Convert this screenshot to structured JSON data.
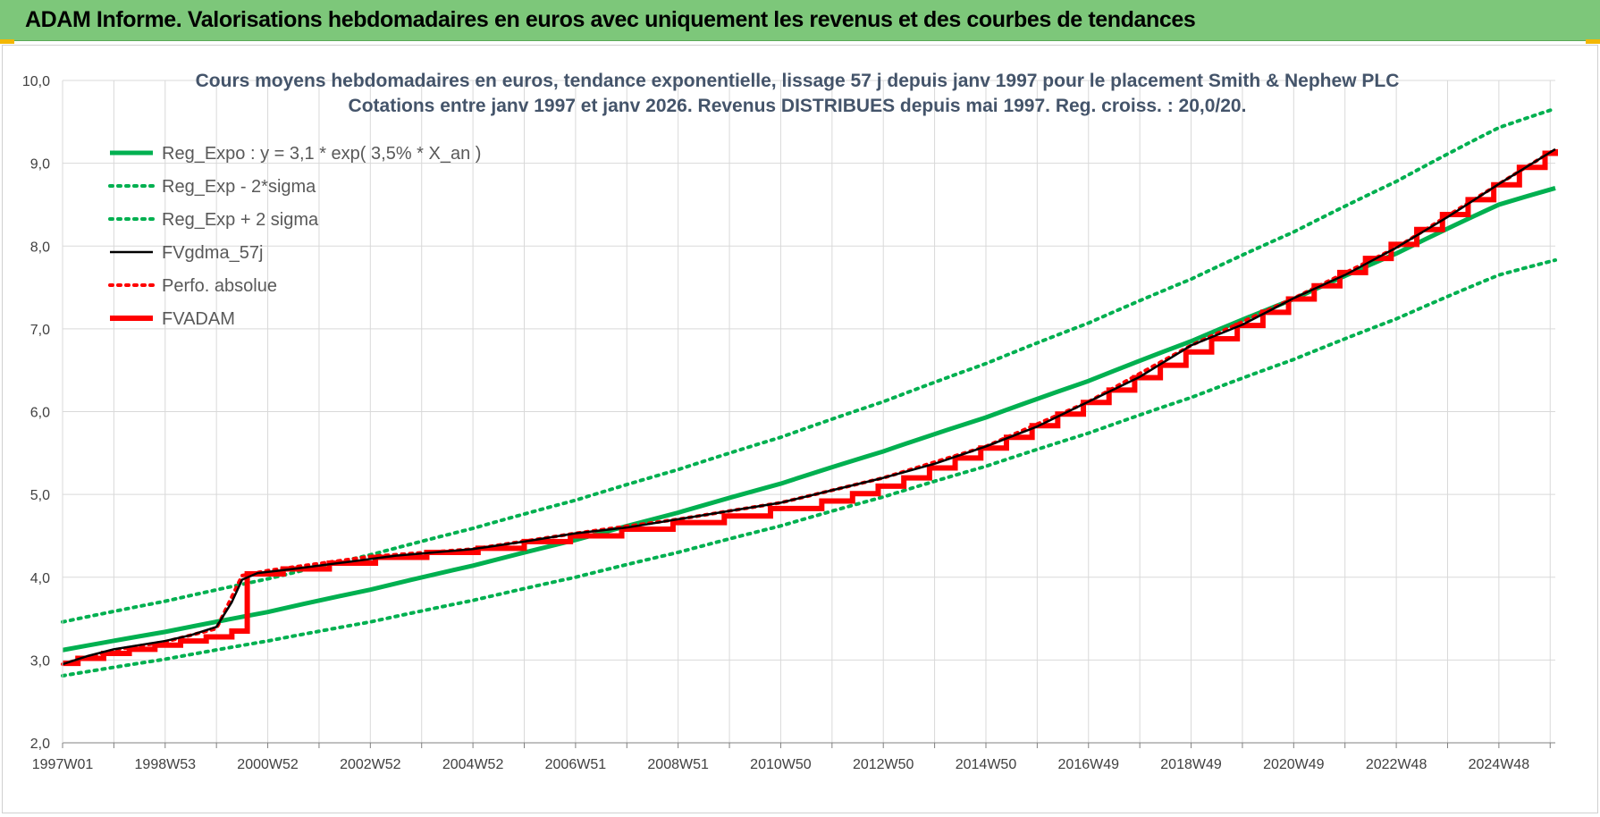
{
  "header": {
    "title": "ADAM Informe. Valorisations hebdomadaires en euros avec uniquement les revenus et des courbes de tendances"
  },
  "colors": {
    "banner": "#7dc77a",
    "trend_green": "#00b050",
    "fvgdma_black": "#000000",
    "red": "#ff0000",
    "grid": "#d9d9d9"
  },
  "chart_data": {
    "type": "line",
    "title": "Cours moyens hebdomadaires en euros, tendance exponentielle, lissage 57 j depuis janv 1997 pour le placement Smith & Nephew PLC",
    "subtitle": "Cotations entre janv 1997 et janv 2026. Revenus DISTRIBUES depuis mai 1997. Reg. croiss. : 20,0/20.",
    "xlabel": "",
    "ylabel": "",
    "x_range": [
      1997.0,
      2026.1
    ],
    "ylim": [
      2.0,
      10.0
    ],
    "y_ticks": [
      "2,0",
      "3,0",
      "4,0",
      "5,0",
      "6,0",
      "7,0",
      "8,0",
      "9,0",
      "10,0"
    ],
    "x_tick_labels": [
      "1997W01",
      "1998W53",
      "2000W52",
      "2002W52",
      "2004W52",
      "2006W51",
      "2008W51",
      "2010W50",
      "2012W50",
      "2014W50",
      "2016W49",
      "2018W49",
      "2020W49",
      "2022W48",
      "2024W48"
    ],
    "x_tick_years": [
      1997.0,
      1999.0,
      2001.0,
      2003.0,
      2005.0,
      2007.0,
      2009.0,
      2011.0,
      2013.0,
      2015.0,
      2017.0,
      2019.0,
      2021.0,
      2023.0,
      2025.0
    ],
    "grid": true,
    "legend_position": "top-left",
    "series": [
      {
        "name": "Reg_Expo : y = 3,1 * exp( 3,5% *  X_an )",
        "style": "solid",
        "color": "#00b050",
        "x": [
          1997.0,
          1999.0,
          2001.0,
          2003.0,
          2005.0,
          2007.0,
          2009.0,
          2011.0,
          2013.0,
          2015.0,
          2017.0,
          2019.0,
          2021.0,
          2023.0,
          2025.0,
          2026.1
        ],
        "values": [
          3.12,
          3.34,
          3.58,
          3.85,
          4.14,
          4.45,
          4.78,
          5.13,
          5.52,
          5.93,
          6.37,
          6.85,
          7.36,
          7.91,
          8.5,
          8.7
        ]
      },
      {
        "name": "Reg_Exp - 2*sigma",
        "style": "dotted",
        "color": "#00b050",
        "x": [
          1997.0,
          1999.0,
          2001.0,
          2003.0,
          2005.0,
          2007.0,
          2009.0,
          2011.0,
          2013.0,
          2015.0,
          2017.0,
          2019.0,
          2021.0,
          2023.0,
          2025.0,
          2026.1
        ],
        "values": [
          2.81,
          3.01,
          3.23,
          3.46,
          3.72,
          4.0,
          4.3,
          4.62,
          4.97,
          5.34,
          5.74,
          6.17,
          6.63,
          7.12,
          7.65,
          7.83
        ]
      },
      {
        "name": "Reg_Exp + 2 sigma",
        "style": "dotted",
        "color": "#00b050",
        "x": [
          1997.0,
          1999.0,
          2001.0,
          2003.0,
          2005.0,
          2007.0,
          2009.0,
          2011.0,
          2013.0,
          2015.0,
          2017.0,
          2019.0,
          2021.0,
          2023.0,
          2025.0,
          2026.1
        ],
        "values": [
          3.46,
          3.71,
          3.98,
          4.27,
          4.59,
          4.93,
          5.3,
          5.69,
          6.12,
          6.58,
          7.07,
          7.6,
          8.17,
          8.78,
          9.43,
          9.66
        ]
      },
      {
        "name": "FVgdma_57j",
        "style": "solid-thin",
        "color": "#000000",
        "x": [
          1997.0,
          1997.5,
          1998.0,
          1998.5,
          1999.0,
          1999.5,
          2000.0,
          2000.3,
          2000.5,
          2000.8,
          2001.5,
          2002.5,
          2003.5,
          2005.0,
          2006.0,
          2007.0,
          2008.0,
          2009.0,
          2010.0,
          2011.0,
          2012.0,
          2013.0,
          2014.0,
          2015.0,
          2016.0,
          2017.0,
          2018.0,
          2019.0,
          2020.0,
          2021.0,
          2022.0,
          2023.0,
          2024.0,
          2025.0,
          2026.1
        ],
        "values": [
          2.95,
          3.05,
          3.13,
          3.18,
          3.23,
          3.3,
          3.4,
          3.7,
          3.97,
          4.05,
          4.1,
          4.18,
          4.26,
          4.34,
          4.43,
          4.53,
          4.6,
          4.7,
          4.8,
          4.9,
          5.05,
          5.2,
          5.37,
          5.58,
          5.82,
          6.12,
          6.42,
          6.8,
          7.05,
          7.37,
          7.65,
          7.98,
          8.35,
          8.75,
          9.17
        ]
      },
      {
        "name": "Perfo. absolue",
        "style": "dotted",
        "color": "#ff0000",
        "x": [
          1997.0,
          1998.0,
          1999.0,
          2000.0,
          2000.5,
          2001.0,
          2003.0,
          2005.0,
          2007.0,
          2009.0,
          2011.0,
          2013.0,
          2015.0,
          2017.0,
          2019.0,
          2021.0,
          2023.0,
          2025.0,
          2026.1
        ],
        "values": [
          2.95,
          3.12,
          3.22,
          3.38,
          4.02,
          4.08,
          4.25,
          4.34,
          4.53,
          4.7,
          4.9,
          5.2,
          5.58,
          6.12,
          6.8,
          7.37,
          7.98,
          8.75,
          9.17
        ]
      },
      {
        "name": "FVADAM",
        "style": "step",
        "color": "#ff0000",
        "x": [
          1997.0,
          1997.3,
          1997.8,
          1998.3,
          1998.8,
          1999.3,
          1999.8,
          2000.3,
          2000.6,
          2001.3,
          2002.2,
          2003.1,
          2004.1,
          2005.1,
          2006.0,
          2006.9,
          2007.9,
          2008.9,
          2009.9,
          2010.8,
          2011.8,
          2012.4,
          2012.9,
          2013.4,
          2013.9,
          2014.4,
          2014.9,
          2015.4,
          2015.9,
          2016.4,
          2016.9,
          2017.4,
          2017.9,
          2018.4,
          2018.9,
          2019.4,
          2019.9,
          2020.4,
          2020.9,
          2021.4,
          2021.9,
          2022.4,
          2022.9,
          2023.4,
          2023.9,
          2024.4,
          2024.9,
          2025.4,
          2025.9,
          2026.1
        ],
        "values": [
          2.96,
          3.02,
          3.08,
          3.13,
          3.18,
          3.23,
          3.28,
          3.35,
          4.04,
          4.1,
          4.17,
          4.24,
          4.3,
          4.35,
          4.43,
          4.5,
          4.58,
          4.66,
          4.74,
          4.83,
          4.92,
          5.01,
          5.1,
          5.2,
          5.32,
          5.44,
          5.56,
          5.69,
          5.83,
          5.97,
          6.11,
          6.26,
          6.41,
          6.56,
          6.72,
          6.88,
          7.04,
          7.2,
          7.36,
          7.52,
          7.68,
          7.85,
          8.02,
          8.2,
          8.38,
          8.56,
          8.74,
          8.95,
          9.12,
          9.17
        ]
      }
    ]
  }
}
